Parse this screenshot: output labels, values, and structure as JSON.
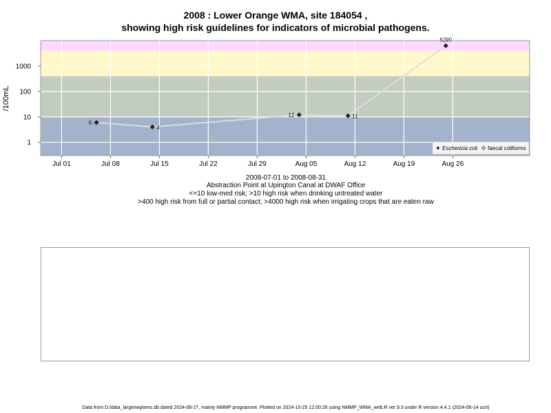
{
  "titles": {
    "line1": "2008 : Lower Orange WMA, site 184054 ,",
    "line2": "showing high risk guidelines for indicators of microbial pathogens."
  },
  "subtitles": {
    "date_range": "2008-07-01 to 2008-08-31",
    "location": "Abstraction Point at Upington Canal at DWAF Office",
    "risk_1": "<=10 low-med risk; >10 high risk when drinking untreated water",
    "risk_2": ">400 high risk from full or partial contact; >4000 high risk when irrigating crops that are eaten raw"
  },
  "footer": "Data from D:/data_large/wq/wms.db dated 2024-08-27, mainly NMMP programme. Plotted on 2024-10-25 12:00:26 using NMMP_WMA_web.R ver 9.3 under R version 4.4.1 (2024-06-14 ucrt)",
  "chart_data": {
    "type": "line",
    "ylabel": "/100mL",
    "y_scale": "log10",
    "ylim": [
      0.3,
      10000
    ],
    "xlim": [
      "2008-06-28",
      "2008-09-06"
    ],
    "x_ticks": [
      {
        "date": "2008-07-01",
        "label": "Jul 01"
      },
      {
        "date": "2008-07-08",
        "label": "Jul 08"
      },
      {
        "date": "2008-07-15",
        "label": "Jul 15"
      },
      {
        "date": "2008-07-22",
        "label": "Jul 22"
      },
      {
        "date": "2008-07-29",
        "label": "Jul 29"
      },
      {
        "date": "2008-08-05",
        "label": "Aug 05"
      },
      {
        "date": "2008-08-12",
        "label": "Aug 12"
      },
      {
        "date": "2008-08-19",
        "label": "Aug 19"
      },
      {
        "date": "2008-08-26",
        "label": "Aug 26"
      }
    ],
    "y_ticks": [
      {
        "value": 1,
        "label": "1"
      },
      {
        "value": 10,
        "label": "10"
      },
      {
        "value": 100,
        "label": "100"
      },
      {
        "value": 1000,
        "label": "1000"
      }
    ],
    "risk_bands": [
      {
        "from": 0.3,
        "to": 10,
        "color": "#a3b3cc"
      },
      {
        "from": 10,
        "to": 400,
        "color": "#c3ccc0"
      },
      {
        "from": 400,
        "to": 4000,
        "color": "#fff8c8"
      },
      {
        "from": 4000,
        "to": 10000,
        "color": "#ffd8ff"
      }
    ],
    "grid": true,
    "series": [
      {
        "name": "Eschericia coli",
        "marker": "filled-diamond",
        "color": "#222222",
        "line_color": "#dddddd",
        "points": [
          {
            "x": "2008-07-06",
            "y": 6,
            "label": "6"
          },
          {
            "x": "2008-07-14",
            "y": 4,
            "label": "4"
          },
          {
            "x": "2008-08-04",
            "y": 12,
            "label": "12"
          },
          {
            "x": "2008-08-11",
            "y": 11,
            "label": "11"
          },
          {
            "x": "2008-08-25",
            "y": 6290,
            "label": "6290"
          }
        ]
      },
      {
        "name": "faecal coliforms",
        "marker": "open-diamond",
        "color": "#222222",
        "points": []
      }
    ],
    "legend_position": "bottom-right"
  }
}
